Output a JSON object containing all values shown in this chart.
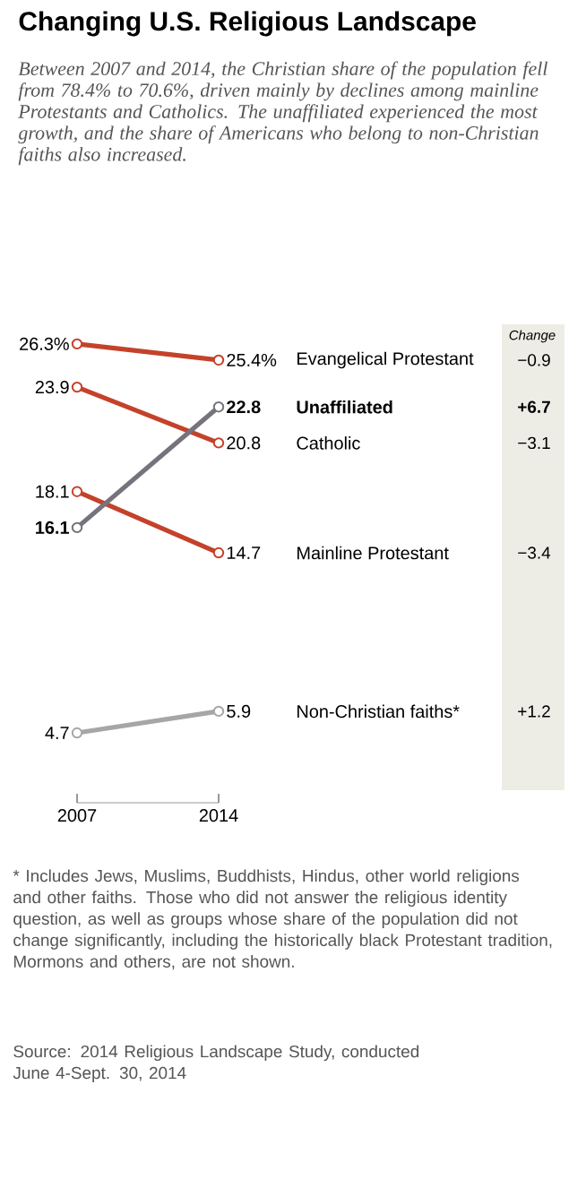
{
  "chart_data": {
    "type": "line",
    "title": "Changing U.S. Religious Landscape",
    "subtitle": "Between 2007 and 2014, the Christian share of the population fell from 78.4% to 70.6%, driven mainly by declines among mainline Protestants and Catholics. The unaffiliated experienced the most growth, and the share of Americans who belong to non-Christian faiths also increased.",
    "categories": [
      "2007",
      "2014"
    ],
    "marker": "circle",
    "line_style": "solid",
    "series": [
      {
        "name": "Evangelical Protestant",
        "color": "#c4422a",
        "values": [
          26.3,
          25.4
        ],
        "value_labels": [
          "26.3%",
          "25.4%"
        ]
      },
      {
        "name": "Catholic",
        "color": "#c4422a",
        "values": [
          23.9,
          20.8
        ],
        "value_labels": [
          "23.9",
          "20.8"
        ]
      },
      {
        "name": "Mainline Protestant",
        "color": "#c4422a",
        "values": [
          18.1,
          14.7
        ],
        "value_labels": [
          "18.1",
          "14.7"
        ]
      },
      {
        "name": "**Unaffiliated**",
        "color": "#77737c",
        "values": [
          16.1,
          22.8
        ],
        "value_labels": [
          "**16.1**",
          "**22.8**"
        ]
      },
      {
        "name": "Non-Christian faiths*",
        "color": "#a6a6a6",
        "values": [
          4.7,
          5.9
        ],
        "value_labels": [
          "4.7",
          "5.9"
        ]
      }
    ],
    "annotations": [
      "Change",
      "−0.9",
      "−3.1",
      "−3.4",
      "**+6.7**",
      "+1.2",
      "* Includes Jews, Muslims, Buddhists, Hindus, other world religions and other faiths. Those who did not answer the religious identity question, as well as groups whose share of the population did not change significantly, including the historically black Protestant tradition, Mormons and others, are not shown.",
      "Source: 2014 Religious Landscape Study, conducted June 4-Sept. 30, 2014"
    ]
  }
}
